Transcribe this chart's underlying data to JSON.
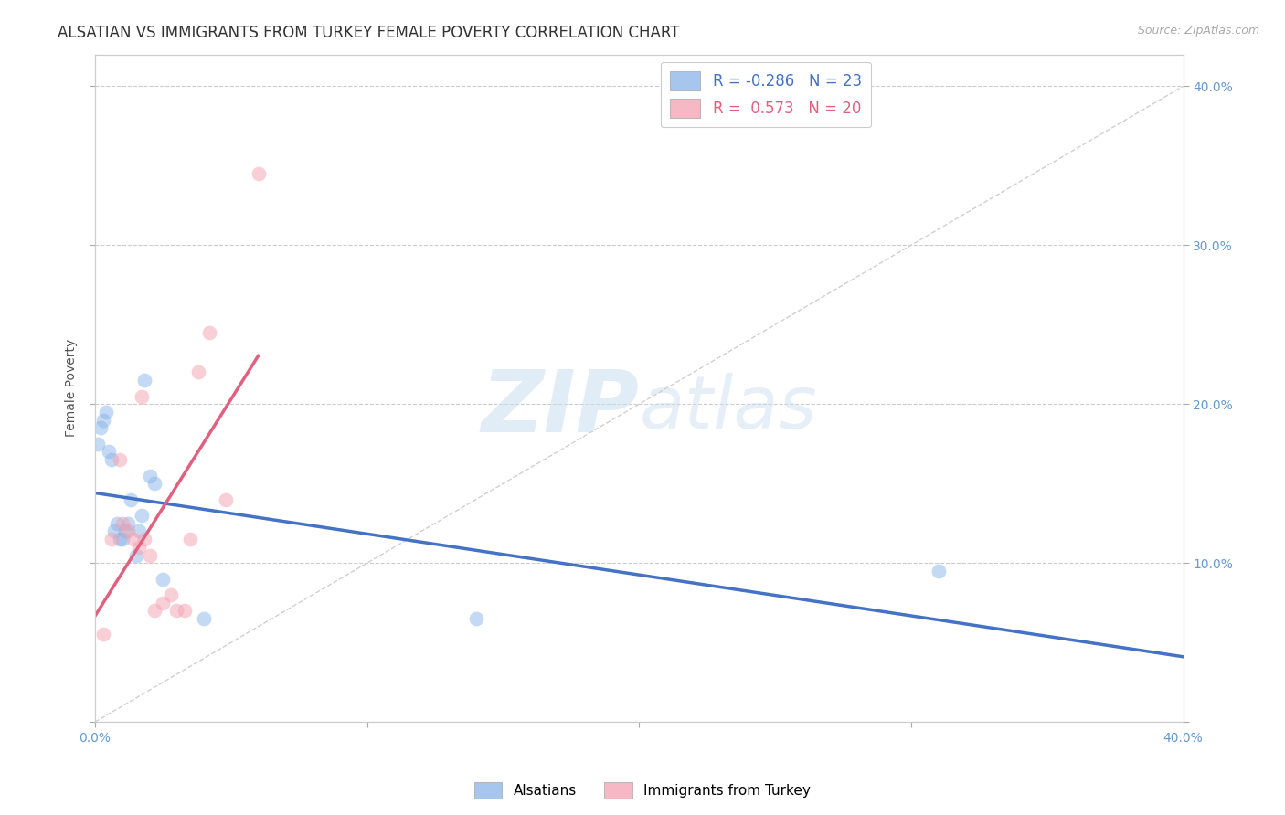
{
  "title": "ALSATIAN VS IMMIGRANTS FROM TURKEY FEMALE POVERTY CORRELATION CHART",
  "source": "Source: ZipAtlas.com",
  "ylabel": "Female Poverty",
  "xlim": [
    0.0,
    0.4
  ],
  "ylim": [
    0.0,
    0.42
  ],
  "grid_color": "#cccccc",
  "background_color": "#ffffff",
  "alsatians_color": "#8ab4e8",
  "turkey_color": "#f4a0b0",
  "alsatians_line_color": "#4472c4",
  "turkey_line_color": "#e06080",
  "diag_color": "#d0d0d0",
  "tick_color": "#6699cc",
  "label_color": "#555555",
  "alsatians_x": [
    0.001,
    0.002,
    0.003,
    0.004,
    0.005,
    0.006,
    0.007,
    0.008,
    0.009,
    0.01,
    0.011,
    0.012,
    0.013,
    0.015,
    0.016,
    0.017,
    0.018,
    0.02,
    0.022,
    0.025,
    0.04,
    0.14,
    0.31
  ],
  "alsatians_y": [
    0.175,
    0.185,
    0.19,
    0.195,
    0.17,
    0.165,
    0.12,
    0.125,
    0.115,
    0.115,
    0.12,
    0.125,
    0.14,
    0.105,
    0.12,
    0.13,
    0.215,
    0.155,
    0.15,
    0.09,
    0.065,
    0.065,
    0.095
  ],
  "turkey_x": [
    0.003,
    0.006,
    0.009,
    0.01,
    0.012,
    0.014,
    0.016,
    0.017,
    0.018,
    0.02,
    0.022,
    0.025,
    0.028,
    0.03,
    0.033,
    0.035,
    0.038,
    0.042,
    0.048,
    0.06
  ],
  "turkey_y": [
    0.055,
    0.115,
    0.165,
    0.125,
    0.12,
    0.115,
    0.11,
    0.205,
    0.115,
    0.105,
    0.07,
    0.075,
    0.08,
    0.07,
    0.07,
    0.115,
    0.22,
    0.245,
    0.14,
    0.345
  ],
  "watermark_zip": "ZIP",
  "watermark_atlas": "atlas",
  "marker_size": 130,
  "marker_alpha": 0.5
}
